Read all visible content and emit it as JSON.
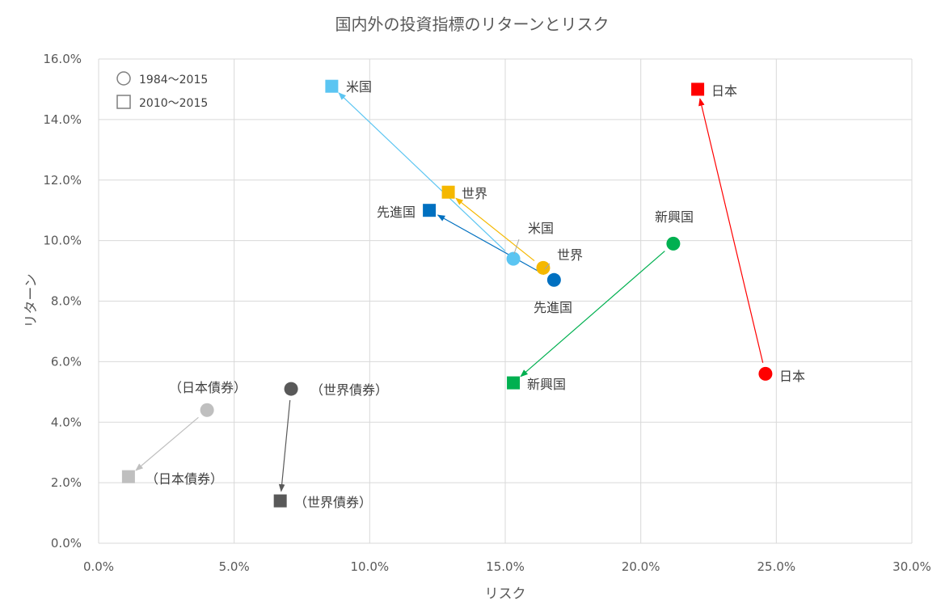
{
  "chart_data": {
    "type": "scatter",
    "title": "国内外の投資指標のリターンとリスク",
    "xlabel": "リスク",
    "ylabel": "リターン",
    "xlim": [
      0,
      0.3
    ],
    "ylim": [
      0,
      0.16
    ],
    "x_ticks": [
      0,
      0.05,
      0.1,
      0.15,
      0.2,
      0.25,
      0.3
    ],
    "y_ticks": [
      0,
      0.02,
      0.04,
      0.06,
      0.08,
      0.1,
      0.12,
      0.14,
      0.16
    ],
    "x_tick_labels": [
      "0.0%",
      "5.0%",
      "10.0%",
      "15.0%",
      "20.0%",
      "25.0%",
      "30.0%"
    ],
    "y_tick_labels": [
      "0.0%",
      "2.0%",
      "4.0%",
      "6.0%",
      "8.0%",
      "10.0%",
      "12.0%",
      "14.0%",
      "16.0%"
    ],
    "legend": [
      {
        "marker": "circle",
        "label": "1984〜2015"
      },
      {
        "marker": "square",
        "label": "2010〜2015"
      }
    ],
    "series": [
      {
        "name": "米国",
        "color": "#5bc5f2",
        "p1984": [
          0.153,
          0.094
        ],
        "p2010": [
          0.086,
          0.151
        ],
        "label1984": "米国",
        "label2010": "米国"
      },
      {
        "name": "世界",
        "color": "#f5b800",
        "p1984": [
          0.164,
          0.091
        ],
        "p2010": [
          0.129,
          0.116
        ],
        "label1984": "世界",
        "label2010": "世界"
      },
      {
        "name": "先進国",
        "color": "#0070c0",
        "p1984": [
          0.168,
          0.087
        ],
        "p2010": [
          0.122,
          0.11
        ],
        "label1984": "先進国",
        "label2010": "先進国"
      },
      {
        "name": "新興国",
        "color": "#00b050",
        "p1984": [
          0.212,
          0.099
        ],
        "p2010": [
          0.153,
          0.053
        ],
        "label1984": "新興国",
        "label2010": "新興国"
      },
      {
        "name": "日本",
        "color": "#ff0000",
        "p1984": [
          0.246,
          0.056
        ],
        "p2010": [
          0.221,
          0.15
        ],
        "label1984": "日本",
        "label2010": "日本"
      },
      {
        "name": "日本債券",
        "color": "#bfbfbf",
        "p1984": [
          0.04,
          0.044
        ],
        "p2010": [
          0.011,
          0.022
        ],
        "label1984": "（日本債券）",
        "label2010": "（日本債券）"
      },
      {
        "name": "世界債券",
        "color": "#595959",
        "p1984": [
          0.071,
          0.051
        ],
        "p2010": [
          0.067,
          0.014
        ],
        "label1984": "（世界債券）",
        "label2010": "（世界債券）"
      }
    ]
  }
}
